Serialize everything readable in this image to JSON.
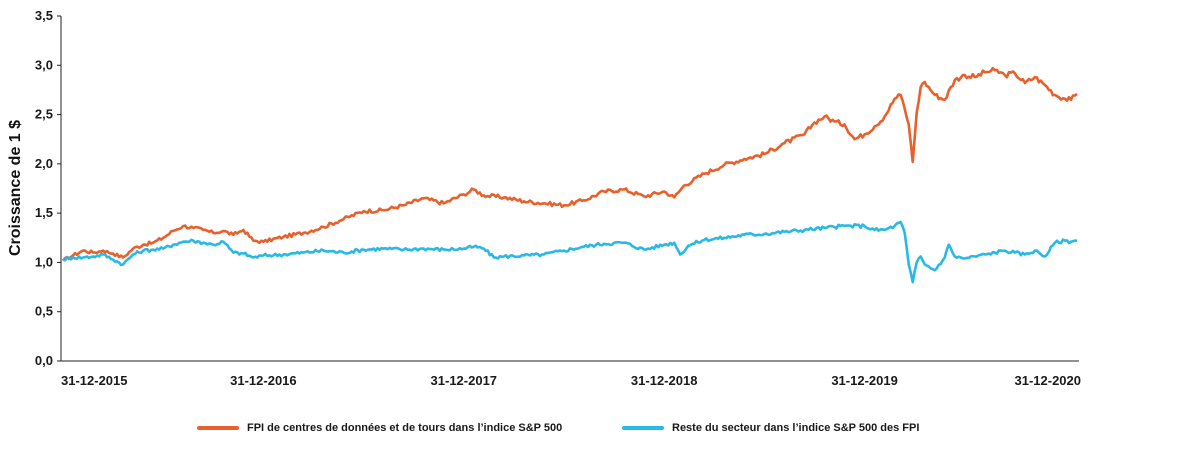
{
  "chart_data": {
    "type": "line",
    "ylabel": "Croissance de 1 $",
    "xlabel": "",
    "ylim": [
      0,
      3.5
    ],
    "yticks": [
      "0,0",
      "0,5",
      "1,0",
      "1,5",
      "2,0",
      "2,5",
      "3,0",
      "3,5"
    ],
    "xlim": [
      2015.99,
      2021.07
    ],
    "xticks": [
      {
        "label": "31-12-2015",
        "x": 2016.0
      },
      {
        "label": "31-12-2016",
        "x": 2017.0
      },
      {
        "label": "31-12-2017",
        "x": 2018.0
      },
      {
        "label": "31-12-2018",
        "x": 2019.0
      },
      {
        "label": "31-12-2019",
        "x": 2020.0
      },
      {
        "label": "31-12-2020",
        "x": 2021.0
      }
    ],
    "grid": false,
    "legend_position": "bottom",
    "series": [
      {
        "name": "FPI de centres de données et de tours dans l’indice S&P 500",
        "color": "#e8602c",
        "points": [
          [
            2016.0,
            1.02
          ],
          [
            2016.05,
            1.07
          ],
          [
            2016.1,
            1.12
          ],
          [
            2016.15,
            1.1
          ],
          [
            2016.2,
            1.12
          ],
          [
            2016.25,
            1.09
          ],
          [
            2016.3,
            1.05
          ],
          [
            2016.35,
            1.14
          ],
          [
            2016.4,
            1.18
          ],
          [
            2016.45,
            1.2
          ],
          [
            2016.5,
            1.25
          ],
          [
            2016.55,
            1.32
          ],
          [
            2016.6,
            1.37
          ],
          [
            2016.65,
            1.35
          ],
          [
            2016.7,
            1.33
          ],
          [
            2016.75,
            1.3
          ],
          [
            2016.8,
            1.32
          ],
          [
            2016.85,
            1.28
          ],
          [
            2016.9,
            1.33
          ],
          [
            2016.95,
            1.22
          ],
          [
            2017.0,
            1.21
          ],
          [
            2017.1,
            1.26
          ],
          [
            2017.2,
            1.3
          ],
          [
            2017.3,
            1.36
          ],
          [
            2017.4,
            1.44
          ],
          [
            2017.5,
            1.52
          ],
          [
            2017.6,
            1.53
          ],
          [
            2017.7,
            1.58
          ],
          [
            2017.8,
            1.65
          ],
          [
            2017.9,
            1.6
          ],
          [
            2018.0,
            1.69
          ],
          [
            2018.05,
            1.74
          ],
          [
            2018.1,
            1.68
          ],
          [
            2018.2,
            1.66
          ],
          [
            2018.3,
            1.62
          ],
          [
            2018.4,
            1.6
          ],
          [
            2018.5,
            1.58
          ],
          [
            2018.6,
            1.63
          ],
          [
            2018.7,
            1.72
          ],
          [
            2018.8,
            1.74
          ],
          [
            2018.9,
            1.67
          ],
          [
            2019.0,
            1.72
          ],
          [
            2019.05,
            1.66
          ],
          [
            2019.1,
            1.78
          ],
          [
            2019.2,
            1.9
          ],
          [
            2019.3,
            1.99
          ],
          [
            2019.4,
            2.05
          ],
          [
            2019.5,
            2.1
          ],
          [
            2019.6,
            2.21
          ],
          [
            2019.7,
            2.3
          ],
          [
            2019.75,
            2.42
          ],
          [
            2019.8,
            2.48
          ],
          [
            2019.85,
            2.43
          ],
          [
            2019.9,
            2.4
          ],
          [
            2019.95,
            2.25
          ],
          [
            2020.0,
            2.3
          ],
          [
            2020.05,
            2.38
          ],
          [
            2020.1,
            2.48
          ],
          [
            2020.15,
            2.66
          ],
          [
            2020.18,
            2.7
          ],
          [
            2020.2,
            2.56
          ],
          [
            2020.22,
            2.4
          ],
          [
            2020.24,
            2.02
          ],
          [
            2020.26,
            2.52
          ],
          [
            2020.28,
            2.78
          ],
          [
            2020.3,
            2.83
          ],
          [
            2020.35,
            2.7
          ],
          [
            2020.4,
            2.65
          ],
          [
            2020.45,
            2.85
          ],
          [
            2020.5,
            2.9
          ],
          [
            2020.55,
            2.88
          ],
          [
            2020.6,
            2.93
          ],
          [
            2020.65,
            2.95
          ],
          [
            2020.7,
            2.9
          ],
          [
            2020.75,
            2.92
          ],
          [
            2020.8,
            2.82
          ],
          [
            2020.85,
            2.88
          ],
          [
            2020.9,
            2.8
          ],
          [
            2020.95,
            2.7
          ],
          [
            2021.0,
            2.66
          ],
          [
            2021.03,
            2.65
          ],
          [
            2021.06,
            2.71
          ]
        ]
      },
      {
        "name": "Reste du secteur dans l’indice S&P 500 des FPI",
        "color": "#29b9e6",
        "points": [
          [
            2016.0,
            1.03
          ],
          [
            2016.05,
            1.05
          ],
          [
            2016.1,
            1.05
          ],
          [
            2016.15,
            1.06
          ],
          [
            2016.2,
            1.08
          ],
          [
            2016.25,
            1.03
          ],
          [
            2016.3,
            0.98
          ],
          [
            2016.35,
            1.08
          ],
          [
            2016.4,
            1.12
          ],
          [
            2016.45,
            1.13
          ],
          [
            2016.5,
            1.14
          ],
          [
            2016.55,
            1.18
          ],
          [
            2016.6,
            1.21
          ],
          [
            2016.65,
            1.22
          ],
          [
            2016.7,
            1.2
          ],
          [
            2016.75,
            1.18
          ],
          [
            2016.8,
            1.21
          ],
          [
            2016.85,
            1.1
          ],
          [
            2016.9,
            1.09
          ],
          [
            2016.95,
            1.05
          ],
          [
            2017.0,
            1.07
          ],
          [
            2017.1,
            1.08
          ],
          [
            2017.2,
            1.1
          ],
          [
            2017.3,
            1.12
          ],
          [
            2017.4,
            1.1
          ],
          [
            2017.5,
            1.13
          ],
          [
            2017.6,
            1.14
          ],
          [
            2017.7,
            1.13
          ],
          [
            2017.8,
            1.14
          ],
          [
            2017.9,
            1.13
          ],
          [
            2018.0,
            1.14
          ],
          [
            2018.05,
            1.16
          ],
          [
            2018.1,
            1.14
          ],
          [
            2018.15,
            1.05
          ],
          [
            2018.2,
            1.06
          ],
          [
            2018.3,
            1.07
          ],
          [
            2018.4,
            1.08
          ],
          [
            2018.5,
            1.12
          ],
          [
            2018.6,
            1.16
          ],
          [
            2018.7,
            1.19
          ],
          [
            2018.8,
            1.2
          ],
          [
            2018.9,
            1.13
          ],
          [
            2019.0,
            1.18
          ],
          [
            2019.05,
            1.2
          ],
          [
            2019.08,
            1.08
          ],
          [
            2019.12,
            1.17
          ],
          [
            2019.2,
            1.23
          ],
          [
            2019.3,
            1.25
          ],
          [
            2019.4,
            1.28
          ],
          [
            2019.5,
            1.29
          ],
          [
            2019.6,
            1.31
          ],
          [
            2019.7,
            1.33
          ],
          [
            2019.8,
            1.35
          ],
          [
            2019.9,
            1.37
          ],
          [
            2020.0,
            1.37
          ],
          [
            2020.05,
            1.33
          ],
          [
            2020.1,
            1.33
          ],
          [
            2020.15,
            1.37
          ],
          [
            2020.18,
            1.41
          ],
          [
            2020.2,
            1.3
          ],
          [
            2020.22,
            0.98
          ],
          [
            2020.24,
            0.8
          ],
          [
            2020.26,
            1.0
          ],
          [
            2020.28,
            1.06
          ],
          [
            2020.3,
            0.98
          ],
          [
            2020.35,
            0.92
          ],
          [
            2020.4,
            1.05
          ],
          [
            2020.42,
            1.18
          ],
          [
            2020.45,
            1.06
          ],
          [
            2020.5,
            1.04
          ],
          [
            2020.55,
            1.06
          ],
          [
            2020.6,
            1.08
          ],
          [
            2020.65,
            1.1
          ],
          [
            2020.7,
            1.12
          ],
          [
            2020.75,
            1.1
          ],
          [
            2020.8,
            1.08
          ],
          [
            2020.85,
            1.12
          ],
          [
            2020.9,
            1.06
          ],
          [
            2020.95,
            1.2
          ],
          [
            2021.0,
            1.22
          ],
          [
            2021.03,
            1.21
          ],
          [
            2021.06,
            1.22
          ]
        ]
      }
    ]
  }
}
